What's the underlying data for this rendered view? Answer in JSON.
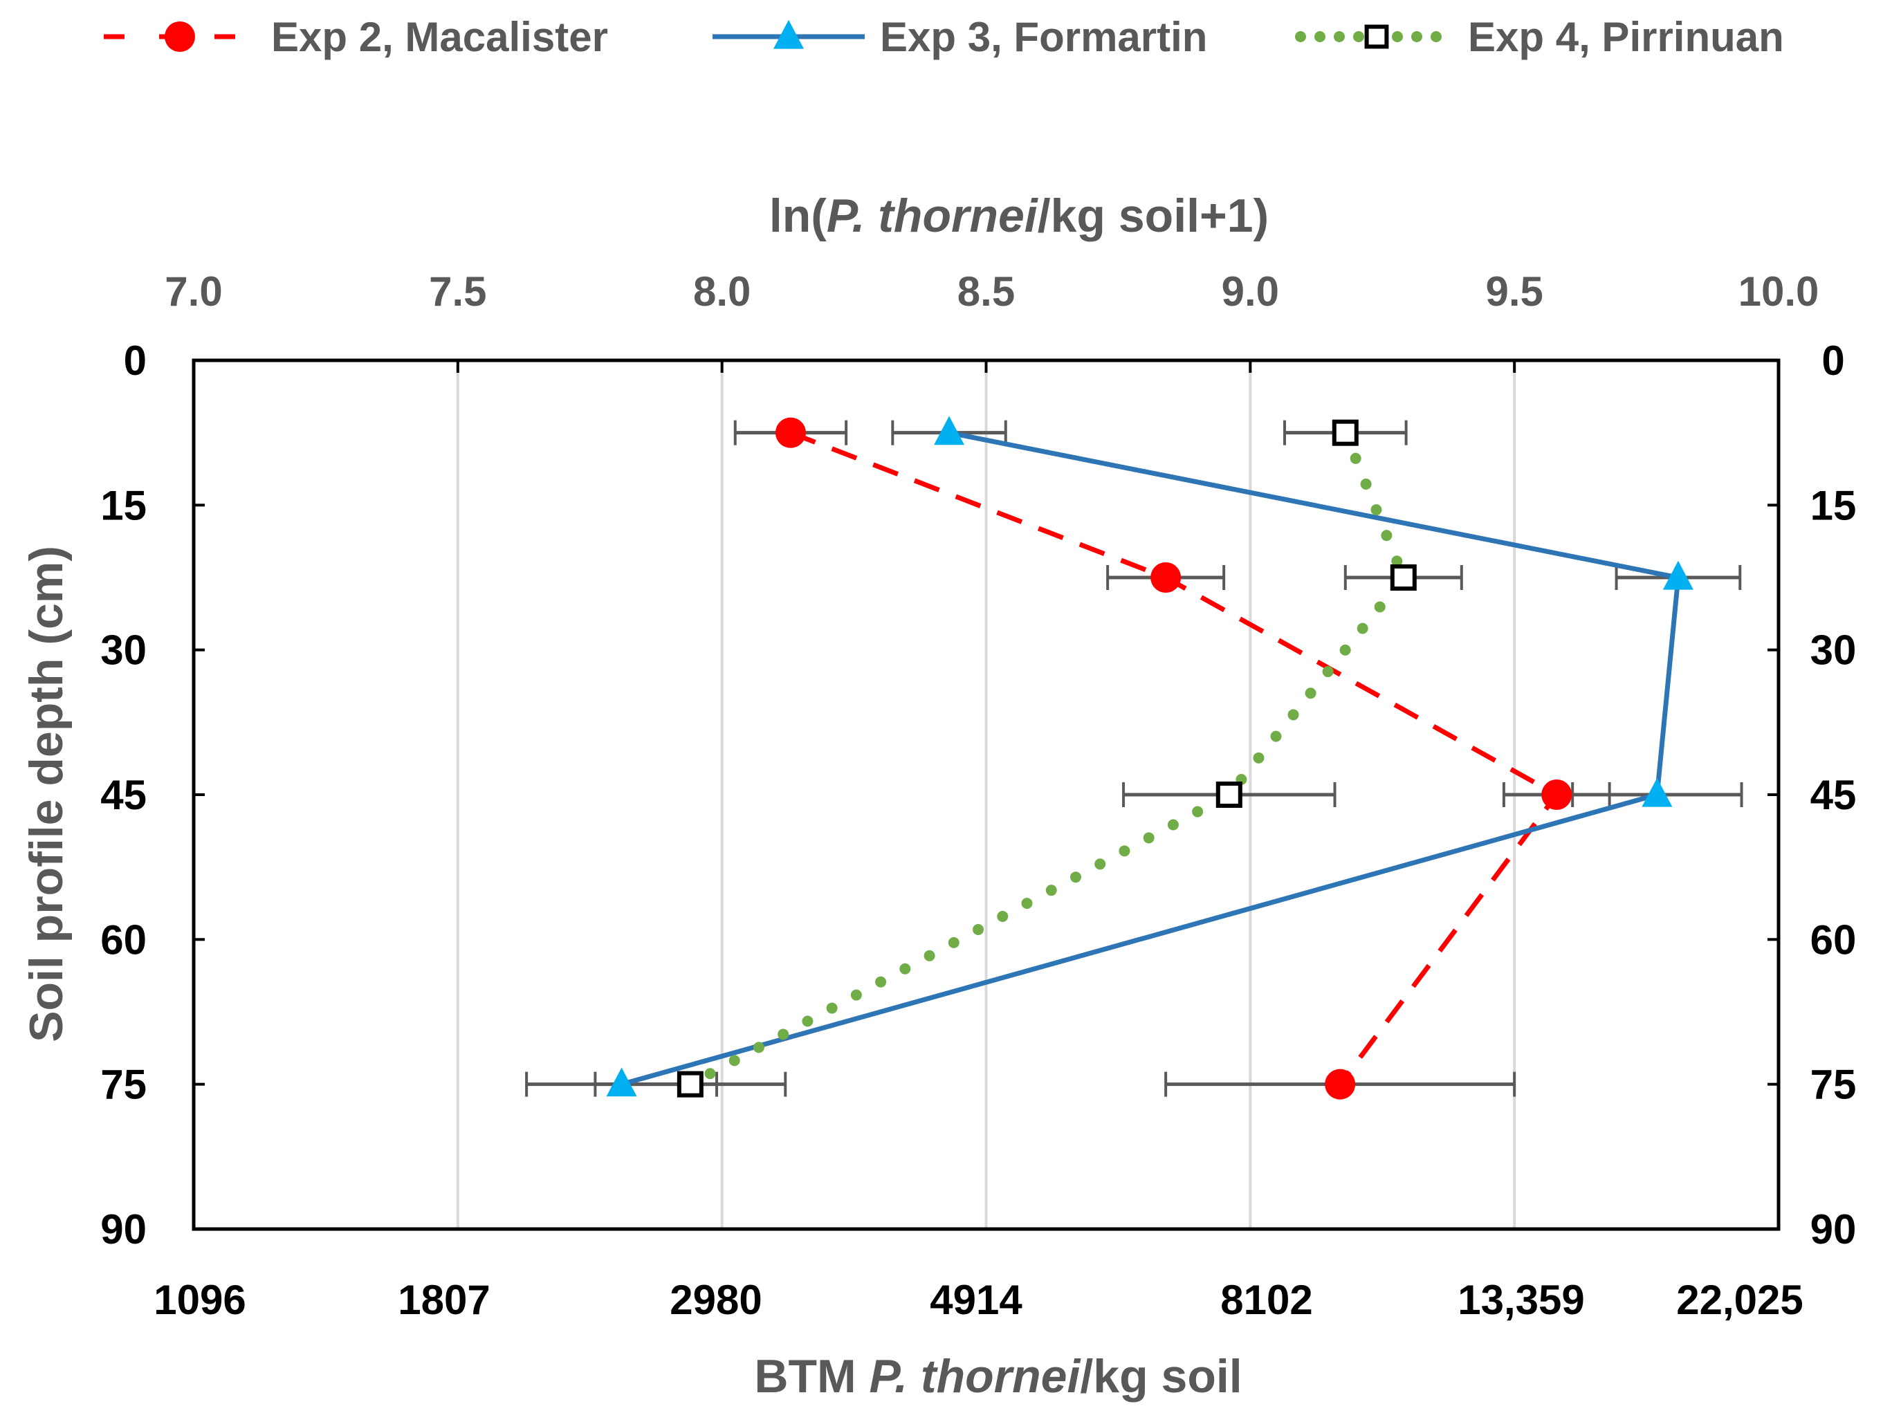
{
  "chart_data": {
    "type": "line",
    "orientation": "vertical-profile",
    "top_axis": {
      "title_prefix": "ln(",
      "title_italic": "P. thornei",
      "title_suffix": "/kg soil+1)",
      "range": [
        7.0,
        10.0
      ],
      "ticks": [
        "7.0",
        "7.5",
        "8.0",
        "8.5",
        "9.0",
        "9.5",
        "10.0"
      ]
    },
    "bottom_axis": {
      "title_prefix": "BTM ",
      "title_italic": "P. thornei",
      "title_suffix": "/kg soil",
      "ticks": [
        "1096",
        "1807",
        "2980",
        "4914",
        "8102",
        "13,359",
        "22,025"
      ]
    },
    "y_axis": {
      "title": "Soil profile depth (cm)",
      "range": [
        0,
        90
      ],
      "ticks": [
        "0",
        "15",
        "30",
        "45",
        "60",
        "75",
        "90"
      ],
      "inverted": true
    },
    "grid": "vertical",
    "legend_position": "top",
    "series": [
      {
        "name": "Exp 2, Macalister",
        "color": "#ff0000",
        "line": "dashed",
        "marker": "circle",
        "depth": [
          7.5,
          22.5,
          45,
          75
        ],
        "values": [
          8.13,
          8.84,
          9.58,
          9.17
        ],
        "error": [
          0.105,
          0.11,
          0.1,
          0.33
        ]
      },
      {
        "name": "Exp 3, Formartin",
        "color": "#2e75b6",
        "marker_color": "#00b0f0",
        "line": "solid",
        "marker": "triangle",
        "depth": [
          7.5,
          22.5,
          45,
          75
        ],
        "values": [
          8.43,
          9.81,
          9.77,
          7.81
        ],
        "error": [
          0.107,
          0.117,
          0.16,
          0.18
        ]
      },
      {
        "name": "Exp 4, Pirrinuan",
        "color": "#70ad47",
        "marker_color": "#000000",
        "line": "dotted",
        "marker": "square",
        "depth": [
          7.5,
          22.5,
          45,
          75
        ],
        "values": [
          9.18,
          9.29,
          8.96,
          7.94
        ],
        "error": [
          0.115,
          0.11,
          0.2,
          0.18
        ]
      }
    ]
  }
}
